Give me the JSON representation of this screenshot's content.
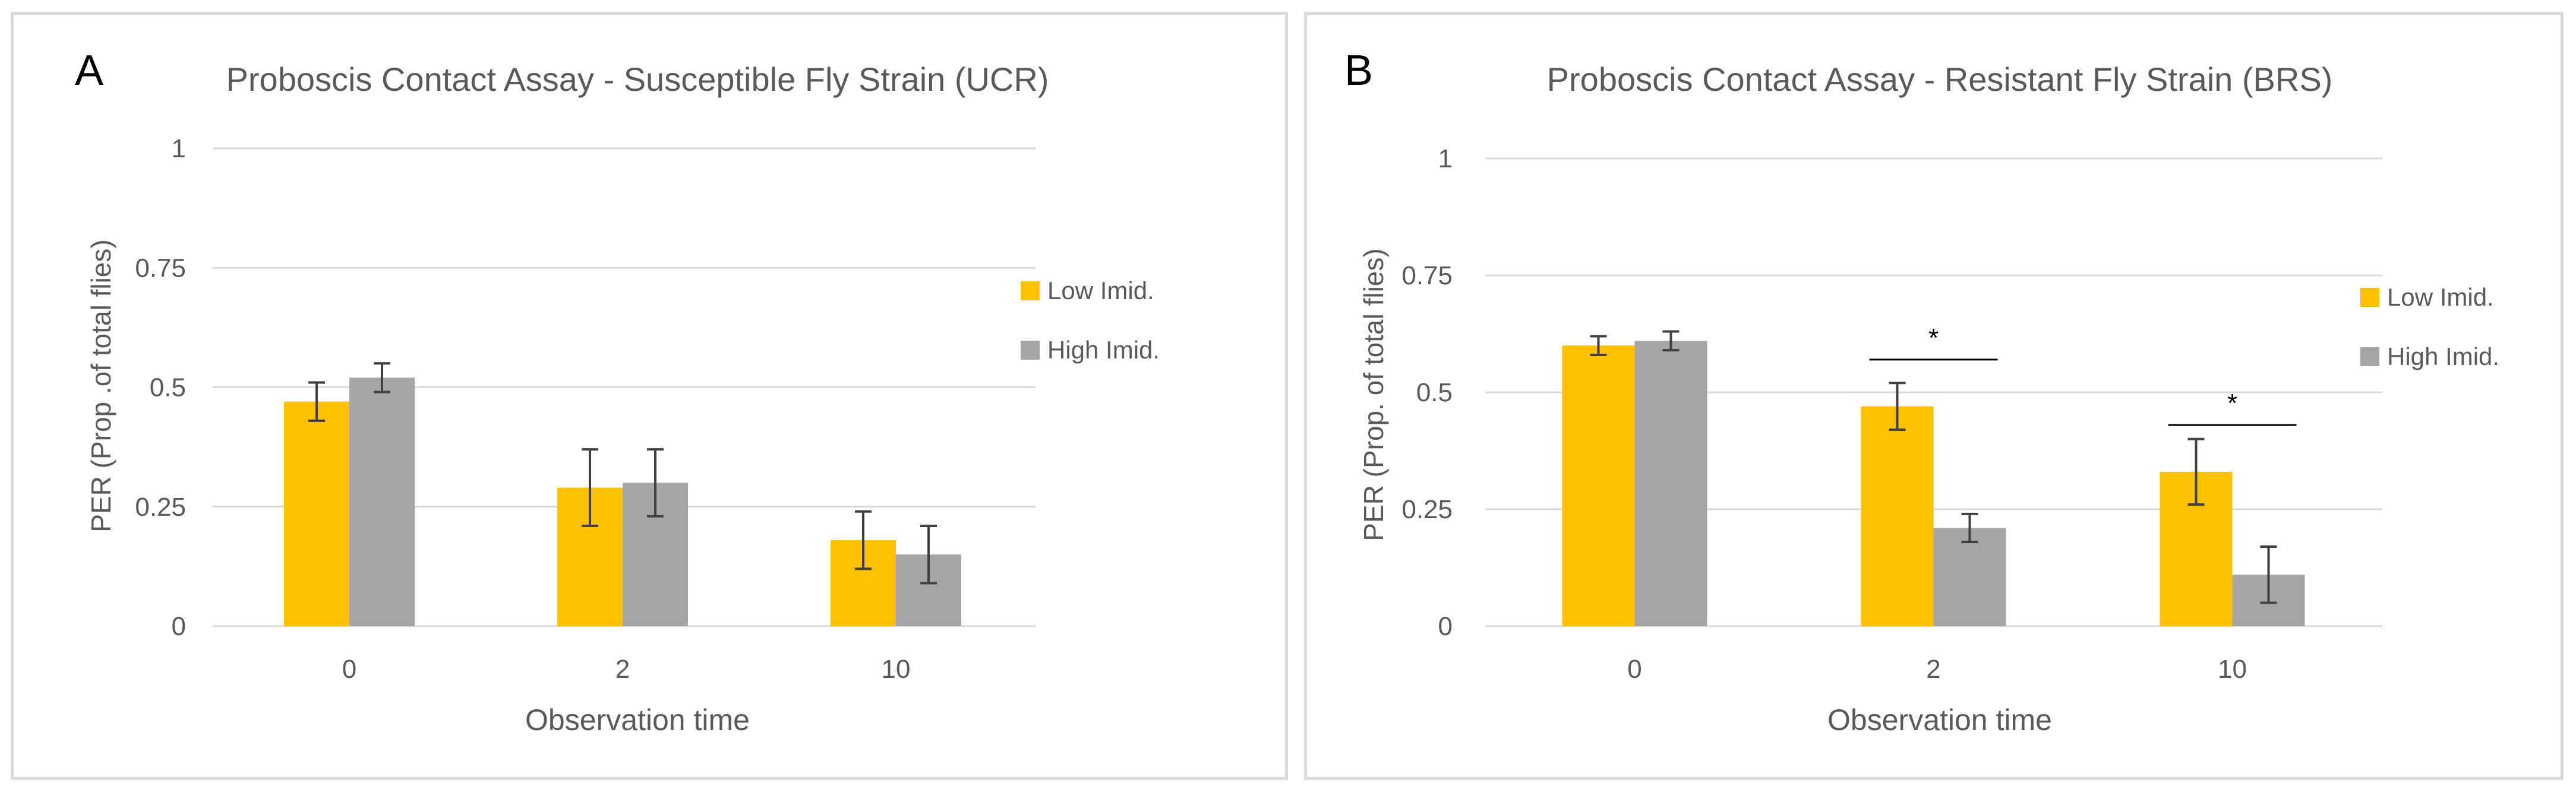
{
  "colors": {
    "low": "#ffc000",
    "high": "#a5a5a5",
    "grid": "#d9d9d9",
    "text": "#595959",
    "error": "#404040"
  },
  "chart_data": [
    {
      "panel_letter": "A",
      "type": "bar",
      "title": "Proboscis Contact Assay - Susceptible Fly Strain (UCR)",
      "xlabel": "Observation time",
      "ylabel": "PER (Prop .of total flies)",
      "categories": [
        "0",
        "2",
        "10"
      ],
      "ylim": [
        0,
        1
      ],
      "yticks": [
        0,
        0.25,
        0.5,
        0.75,
        1
      ],
      "ytick_labels": [
        "0",
        "0.25",
        "0.5",
        "0.75",
        "1"
      ],
      "grid": true,
      "legend": "right",
      "series": [
        {
          "name": "Low Imid.",
          "values": [
            0.47,
            0.29,
            0.18
          ],
          "errors": [
            0.04,
            0.08,
            0.06
          ]
        },
        {
          "name": "High Imid.",
          "values": [
            0.52,
            0.3,
            0.15
          ],
          "errors": [
            0.03,
            0.07,
            0.06
          ]
        }
      ],
      "significance": []
    },
    {
      "panel_letter": "B",
      "type": "bar",
      "title": "Proboscis Contact Assay - Resistant Fly Strain (BRS)",
      "xlabel": "Observation time",
      "ylabel": "PER (Prop. of total flies)",
      "categories": [
        "0",
        "2",
        "10"
      ],
      "ylim": [
        0,
        1
      ],
      "yticks": [
        0,
        0.25,
        0.5,
        0.75,
        1
      ],
      "ytick_labels": [
        "0",
        "0.25",
        "0.5",
        "0.75",
        "1"
      ],
      "grid": true,
      "legend": "right",
      "series": [
        {
          "name": "Low Imid.",
          "values": [
            0.6,
            0.47,
            0.33
          ],
          "errors": [
            0.02,
            0.05,
            0.07
          ]
        },
        {
          "name": "High Imid.",
          "values": [
            0.61,
            0.21,
            0.11
          ],
          "errors": [
            0.02,
            0.03,
            0.06
          ]
        }
      ],
      "significance": [
        {
          "category_index": 1,
          "label": "*",
          "value": 0.57
        },
        {
          "category_index": 2,
          "label": "*",
          "value": 0.43
        }
      ]
    }
  ]
}
